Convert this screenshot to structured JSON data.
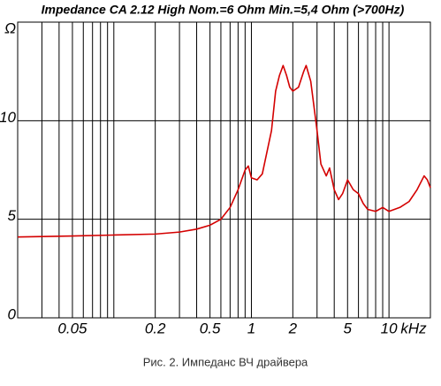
{
  "chart_data": {
    "type": "line",
    "title": "Impedance CA 2.12 High Nom.=6 Ohm  Min.=5,4 Ohm  (>700Hz)",
    "x_label": "kHz",
    "caption": "Рис. 2. Импеданс ВЧ драйвера",
    "x_log": true,
    "xlim": [
      0.02,
      20
    ],
    "ylim": [
      0,
      15
    ],
    "xticks": [
      0.05,
      0.2,
      0.5,
      1,
      2,
      5,
      10
    ],
    "xgrid": [
      0.03,
      0.04,
      0.05,
      0.06,
      0.07,
      0.08,
      0.09,
      0.1,
      0.2,
      0.3,
      0.4,
      0.5,
      0.6,
      0.7,
      0.8,
      0.9,
      1,
      2,
      3,
      4,
      5,
      6,
      7,
      8,
      9,
      10
    ],
    "yticks": [
      0,
      5,
      10,
      {
        "value": 15,
        "label": "Ω"
      }
    ],
    "grid": true,
    "x": [
      0.02,
      0.05,
      0.1,
      0.2,
      0.3,
      0.4,
      0.5,
      0.6,
      0.7,
      0.8,
      0.9,
      0.95,
      1.0,
      1.1,
      1.2,
      1.4,
      1.5,
      1.6,
      1.7,
      1.8,
      1.9,
      2.0,
      2.2,
      2.4,
      2.5,
      2.7,
      3.0,
      3.2,
      3.5,
      3.7,
      4.0,
      4.3,
      4.6,
      5.0,
      5.5,
      6,
      6.5,
      7,
      8,
      9,
      10,
      12,
      14,
      16,
      18,
      19,
      20
    ],
    "series": [
      {
        "name": "Impedance",
        "color": "#d40000",
        "values": [
          4.1,
          4.15,
          4.2,
          4.25,
          4.35,
          4.5,
          4.7,
          5.0,
          5.6,
          6.5,
          7.5,
          7.7,
          7.1,
          7.0,
          7.3,
          9.5,
          11.5,
          12.3,
          12.8,
          12.3,
          11.7,
          11.5,
          11.7,
          12.5,
          12.8,
          12.0,
          9.5,
          7.8,
          7.2,
          7.6,
          6.5,
          6.0,
          6.3,
          7.0,
          6.5,
          6.3,
          5.8,
          5.5,
          5.4,
          5.6,
          5.4,
          5.6,
          5.9,
          6.5,
          7.2,
          7.0,
          6.6
        ]
      }
    ]
  }
}
